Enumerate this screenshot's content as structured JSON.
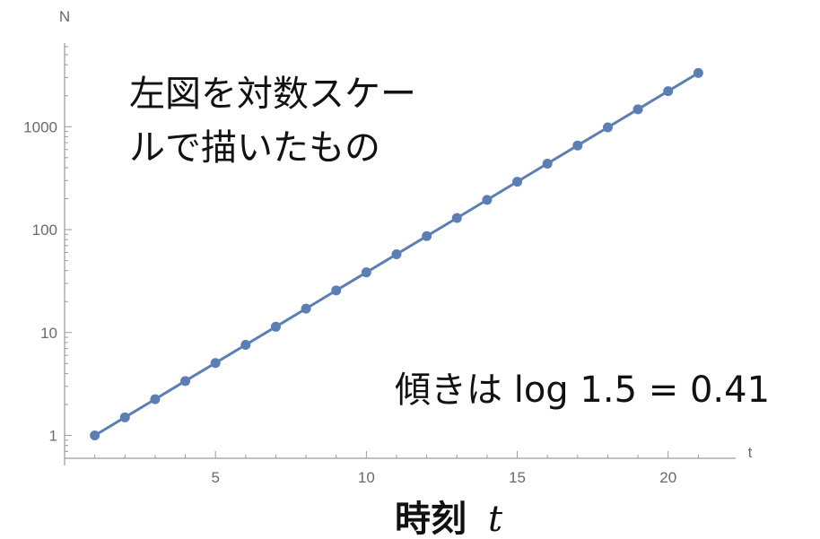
{
  "chart_data": {
    "type": "line",
    "scale": {
      "x": "linear",
      "y": "log"
    },
    "xlabel": "t",
    "ylabel": "N",
    "xlim": [
      0,
      22
    ],
    "ylim": [
      0.6,
      6500
    ],
    "x_ticks": [
      5,
      10,
      15,
      20
    ],
    "x_tick_labels": [
      "5",
      "10",
      "15",
      "20"
    ],
    "y_ticks": [
      1,
      10,
      100,
      1000
    ],
    "y_tick_labels": [
      "1",
      "10",
      "100",
      "1000"
    ],
    "grid": false,
    "series": [
      {
        "color": "#5b7fb5",
        "markers": true,
        "x": [
          1,
          2,
          3,
          4,
          5,
          6,
          7,
          8,
          9,
          10,
          11,
          12,
          13,
          14,
          15,
          16,
          17,
          18,
          19,
          20,
          21
        ],
        "y": [
          1,
          1.5,
          2.25,
          3.38,
          5.06,
          7.59,
          11.39,
          17.09,
          25.63,
          38.44,
          57.67,
          86.5,
          129.75,
          194.62,
          291.93,
          437.89,
          656.84,
          985.26,
          1477.89,
          2216.84,
          3325.26
        ]
      }
    ],
    "annotations": [
      {
        "text_lines": [
          "左図を対数スケー",
          "ルで描いたもの"
        ]
      },
      {
        "text": "傾きは log 1.5 = 0.41"
      }
    ],
    "xtitle_main": "時刻",
    "xtitle_var": "t"
  }
}
